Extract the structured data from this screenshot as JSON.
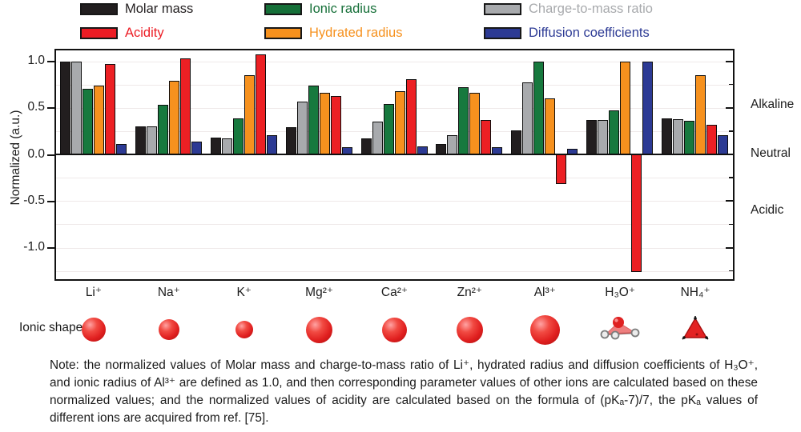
{
  "legend": {
    "items": [
      {
        "label": "Molar mass",
        "color": "#221e1f"
      },
      {
        "label": "Ionic radius",
        "color": "#156f38"
      },
      {
        "label": "Charge-to-mass ratio",
        "color": "#a8aaad"
      },
      {
        "label": "Acidity",
        "color": "#ec1c24"
      },
      {
        "label": "Hydrated radius",
        "color": "#f6911e"
      },
      {
        "label": "Diffusion coefficients",
        "color": "#2c3a94"
      }
    ]
  },
  "chart_data": {
    "type": "bar",
    "title": "",
    "xlabel": "",
    "ylabel": "Normalized (a.u.)",
    "ylim": [
      -1.35,
      1.12
    ],
    "grid": true,
    "legend_position": "top",
    "categories": [
      "Li⁺",
      "Na⁺",
      "K⁺",
      "Mg²⁺",
      "Ca²⁺",
      "Zn²⁺",
      "Al³⁺",
      "H₃O⁺",
      "NH₄⁺"
    ],
    "series": [
      {
        "name": "Molar mass",
        "color": "#221e1f",
        "values": [
          1.0,
          0.3,
          0.18,
          0.29,
          0.17,
          0.11,
          0.26,
          0.37,
          0.39
        ]
      },
      {
        "name": "Charge-to-mass ratio",
        "color": "#a8aaad",
        "values": [
          1.0,
          0.3,
          0.17,
          0.57,
          0.35,
          0.21,
          0.77,
          0.37,
          0.38
        ]
      },
      {
        "name": "Ionic radius",
        "color": "#17793e",
        "values": [
          0.7,
          0.53,
          0.39,
          0.74,
          0.54,
          0.72,
          1.0,
          0.47,
          0.36
        ]
      },
      {
        "name": "Hydrated radius",
        "color": "#f6911e",
        "values": [
          0.74,
          0.79,
          0.85,
          0.66,
          0.68,
          0.66,
          0.6,
          1.0,
          0.85
        ]
      },
      {
        "name": "Acidity",
        "color": "#ec2024",
        "values": [
          0.97,
          1.03,
          1.07,
          0.63,
          0.81,
          0.37,
          -0.32,
          -1.26,
          0.32
        ]
      },
      {
        "name": "Diffusion coefficients",
        "color": "#2c3a94",
        "values": [
          0.11,
          0.14,
          0.21,
          0.08,
          0.09,
          0.08,
          0.06,
          1.0,
          0.21
        ]
      }
    ],
    "yticks": {
      "major": [
        1.0,
        0.5,
        0.0,
        -0.5,
        -1.0
      ],
      "major_labels": [
        "1.0",
        "0.5",
        "0.0",
        "-0.5",
        "-1.0"
      ],
      "minor": [
        0.75,
        0.25,
        -0.25,
        -0.75,
        -1.25
      ]
    },
    "right_labels": [
      {
        "text": "Alkaline",
        "value": 0.54
      },
      {
        "text": "Neutral",
        "value": 0.01
      },
      {
        "text": "Acidic",
        "value": -0.6
      }
    ]
  },
  "ionic_shape": {
    "label": "Ionic shape",
    "shapes": [
      {
        "ion": "Li⁺",
        "type": "sphere",
        "diameter": 30
      },
      {
        "ion": "Na⁺",
        "type": "sphere",
        "diameter": 26
      },
      {
        "ion": "K⁺",
        "type": "sphere",
        "diameter": 22
      },
      {
        "ion": "Mg²⁺",
        "type": "sphere",
        "diameter": 33
      },
      {
        "ion": "Ca²⁺",
        "type": "sphere",
        "diameter": 31
      },
      {
        "ion": "Zn²⁺",
        "type": "sphere",
        "diameter": 33
      },
      {
        "ion": "Al³⁺",
        "type": "sphere",
        "diameter": 37
      },
      {
        "ion": "H₃O⁺",
        "type": "h3o-molecule"
      },
      {
        "ion": "NH₄⁺",
        "type": "nh4-tetrahedron"
      }
    ]
  },
  "note": {
    "text": "Note: the normalized values of Molar mass and charge-to-mass ratio of Li⁺, hydrated radius and diffusion coefficients of H₃O⁺, and ionic radius of Al³⁺ are defined as 1.0, and then corresponding parameter values of other ions are calculated based on these normalized values; and the normalized values of acidity are calculated based on the formula of (pKₐ-7)/7, the pKₐ values of different ions are acquired from ref. [75]."
  }
}
